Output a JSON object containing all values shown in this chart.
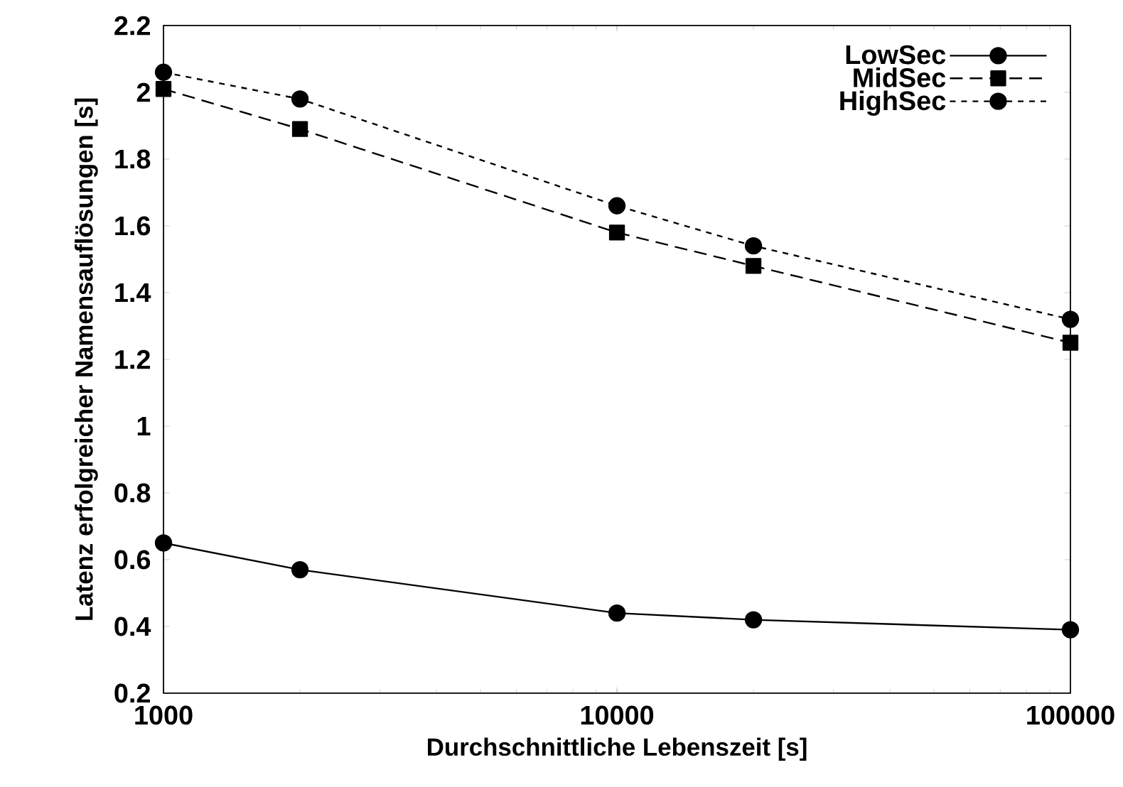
{
  "chart_data": {
    "type": "line",
    "xlabel": "Durchschnittliche Lebenszeit [s]",
    "ylabel": "Latenz erfolgreicher Namensauflösungen [s]",
    "x": [
      1000,
      2000,
      10000,
      20000,
      100000
    ],
    "series": [
      {
        "name": "LowSec",
        "color": "#000000",
        "marker": "circle",
        "line_style": "solid",
        "values": [
          0.65,
          0.57,
          0.44,
          0.42,
          0.39
        ]
      },
      {
        "name": "MidSec",
        "color": "#000000",
        "marker": "square",
        "line_style": "dashed",
        "values": [
          2.01,
          1.89,
          1.58,
          1.48,
          1.25
        ]
      },
      {
        "name": "HighSec",
        "color": "#000000",
        "marker": "circle",
        "line_style": "dotted",
        "values": [
          2.06,
          1.98,
          1.66,
          1.54,
          1.32
        ]
      }
    ],
    "log": "x",
    "xlim": [
      1000,
      100000
    ],
    "xticks": [
      1000,
      10000,
      100000
    ],
    "ylim": [
      0.2,
      2.2
    ],
    "yticks": [
      0.2,
      0.4,
      0.6,
      0.8,
      1,
      1.2,
      1.4,
      1.6,
      1.8,
      2,
      2.2
    ],
    "grid": false,
    "legend": "top right"
  }
}
